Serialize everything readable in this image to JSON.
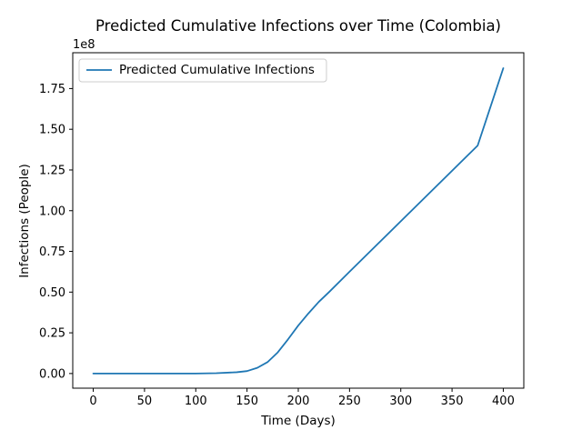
{
  "chart_data": {
    "type": "line",
    "title": "Predicted Cumulative Infections over Time (Colombia)",
    "xlabel": "Time (Days)",
    "ylabel": "Infections (People)",
    "y_offset_label": "1e8",
    "xlim": [
      -20,
      420
    ],
    "ylim": [
      -0.09,
      1.97
    ],
    "x_ticks": [
      0,
      50,
      100,
      150,
      200,
      250,
      300,
      350,
      400
    ],
    "y_ticks": [
      0.0,
      0.25,
      0.5,
      0.75,
      1.0,
      1.25,
      1.5,
      1.75
    ],
    "x_tick_labels": [
      "0",
      "50",
      "100",
      "150",
      "200",
      "250",
      "300",
      "350",
      "400"
    ],
    "y_tick_labels": [
      "0.00",
      "0.25",
      "0.50",
      "0.75",
      "1.00",
      "1.25",
      "1.50",
      "1.75"
    ],
    "grid": false,
    "legend_position": "upper-left",
    "series": [
      {
        "name": "Predicted Cumulative Infections",
        "color": "#1f77b4",
        "x": [
          0,
          50,
          100,
          120,
          140,
          150,
          160,
          170,
          180,
          190,
          200,
          210,
          220,
          230,
          250,
          275,
          300,
          325,
          350,
          375,
          400
        ],
        "y": [
          0.0,
          0.0,
          0.0,
          0.002,
          0.008,
          0.015,
          0.035,
          0.07,
          0.13,
          0.21,
          0.295,
          0.37,
          0.44,
          0.5,
          0.625,
          0.78,
          0.935,
          1.09,
          1.245,
          1.4,
          1.875
        ]
      }
    ]
  }
}
